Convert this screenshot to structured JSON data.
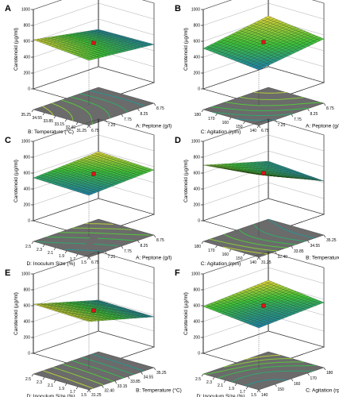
{
  "chart_data": [
    {
      "panel": "A",
      "type": "surface3d",
      "zlabel": "Carotenoid (µg/ml)",
      "zticks": [
        "0",
        "200",
        "400",
        "600",
        "800",
        "1000"
      ],
      "zlim": [
        0,
        1000
      ],
      "x_axis": {
        "label": "A: Peptone (g/l)",
        "ticks": [
          "6.75",
          "7.25",
          "7.75",
          "8.25",
          "8.75"
        ],
        "range": [
          6.75,
          8.75
        ]
      },
      "y_axis": {
        "label": "B: Temperature (°C)",
        "ticks": [
          "31.25",
          "32.40",
          "33.15",
          "33.85",
          "34.55",
          "35.25"
        ],
        "range": [
          31.25,
          35.25
        ]
      },
      "surface": {
        "corners": [
          560,
          480,
          470,
          620
        ],
        "center": 540
      },
      "design_point": 540
    },
    {
      "panel": "B",
      "type": "surface3d",
      "zlabel": "Carotenoid (µg/ml)",
      "zticks": [
        "0",
        "200",
        "400",
        "600",
        "800",
        "1000"
      ],
      "zlim": [
        0,
        1000
      ],
      "x_axis": {
        "label": "A: Peptone (g/l)",
        "ticks": [
          "6.75",
          "7.25",
          "7.75",
          "8.25",
          "8.75"
        ],
        "range": [
          6.75,
          8.75
        ]
      },
      "y_axis": {
        "label": "C: Agitation (rpm)",
        "ticks": [
          "140",
          "150",
          "160",
          "170",
          "180"
        ],
        "range": [
          140,
          180
        ]
      },
      "surface": {
        "corners": [
          440,
          550,
          640,
          510
        ],
        "center": 550
      },
      "design_point": 550
    },
    {
      "panel": "C",
      "type": "surface3d",
      "zlabel": "Carotenoid (µg/ml)",
      "zticks": [
        "0",
        "200",
        "400",
        "600",
        "800",
        "1000"
      ],
      "zlim": [
        0,
        1000
      ],
      "x_axis": {
        "label": "A: Peptone (g/l)",
        "ticks": [
          "6.75",
          "7.25",
          "7.75",
          "8.25",
          "8.75"
        ],
        "range": [
          6.75,
          8.75
        ]
      },
      "y_axis": {
        "label": "D: Inoculum Size (%)",
        "ticks": [
          "1.5",
          "1.7",
          "1.9",
          "2.1",
          "2.3",
          "2.5"
        ],
        "range": [
          1.5,
          2.5
        ]
      },
      "surface": {
        "corners": [
          520,
          560,
          590,
          540
        ],
        "center": 550
      },
      "design_point": 550
    },
    {
      "panel": "D",
      "type": "surface3d",
      "zlabel": "Carotenoid (µg/ml)",
      "zticks": [
        "0",
        "200",
        "400",
        "600",
        "800",
        "1000"
      ],
      "zlim": [
        0,
        1000
      ],
      "x_axis": {
        "label": "B: Temperature (°C)",
        "ticks": [
          "31.25",
          "32.40",
          "33.85",
          "34.55",
          "35.25"
        ],
        "range": [
          31.25,
          35.25
        ]
      },
      "y_axis": {
        "label": "C: Agitation (rpm)",
        "ticks": [
          "140",
          "150",
          "160",
          "170",
          "180"
        ],
        "range": [
          140,
          180
        ]
      },
      "surface": {
        "corners": [
          780,
          420,
          470,
          700
        ],
        "center": 560
      },
      "design_point": 560
    },
    {
      "panel": "E",
      "type": "surface3d",
      "zlabel": "Carotenoid (µg/ml)",
      "zticks": [
        "0",
        "200",
        "400",
        "600",
        "800",
        "1000"
      ],
      "zlim": [
        0,
        1000
      ],
      "x_axis": {
        "label": "B: Temperature (°C)",
        "ticks": [
          "31.25",
          "32.40",
          "33.15",
          "33.85",
          "34.55",
          "35.25"
        ],
        "range": [
          31.25,
          35.25
        ]
      },
      "y_axis": {
        "label": "D: Inoculum Size (%)",
        "ticks": [
          "1.5",
          "1.7",
          "1.9",
          "2.1",
          "2.3",
          "2.5"
        ],
        "range": [
          1.5,
          2.5
        ]
      },
      "surface": {
        "corners": [
          600,
          380,
          390,
          620
        ],
        "center": 500
      },
      "design_point": 500
    },
    {
      "panel": "F",
      "type": "surface3d",
      "zlabel": "Carotenoid (µg/ml)",
      "zticks": [
        "0",
        "200",
        "400",
        "600",
        "800",
        "1000"
      ],
      "zlim": [
        0,
        1000
      ],
      "x_axis": {
        "label": "C: Agitation (rpm)",
        "ticks": [
          "140",
          "150",
          "160",
          "170",
          "180"
        ],
        "range": [
          140,
          180
        ]
      },
      "y_axis": {
        "label": "D: Inoculum Size (%)",
        "ticks": [
          "1.5",
          "1.7",
          "1.9",
          "2.1",
          "2.3",
          "2.5"
        ],
        "range": [
          1.5,
          2.5
        ]
      },
      "surface": {
        "corners": [
          520,
          560,
          640,
          590
        ],
        "center": 560
      },
      "design_point": 560
    }
  ],
  "colors": {
    "surface_low": "#1f7fb4",
    "surface_mid": "#3ec43b",
    "surface_high": "#e8d23a",
    "floor": "#6b6b6b",
    "design_point": "#d9141a"
  }
}
